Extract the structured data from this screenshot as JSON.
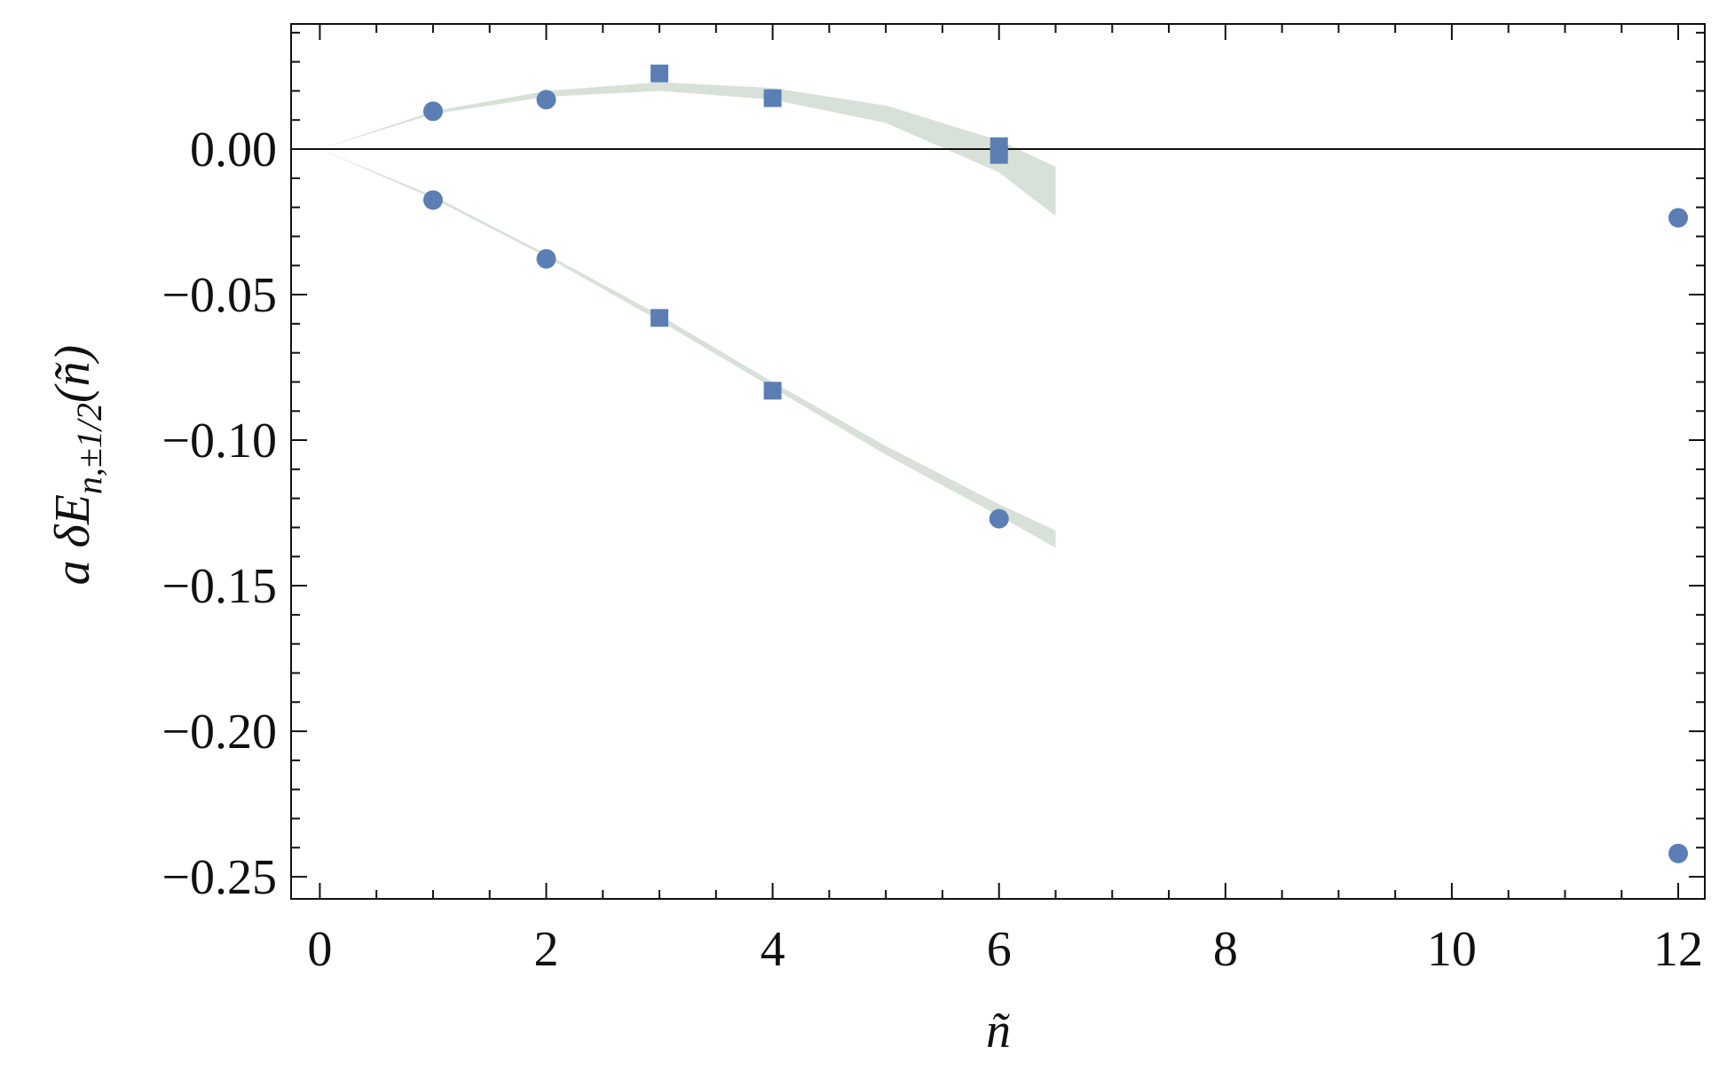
{
  "chart_data": {
    "type": "scatter",
    "x_label": "ñ",
    "y_label": {
      "main": "a δE",
      "sub": "n,±1/2",
      "tail": "(ñ)"
    },
    "xlim": [
      -0.254,
      12.235
    ],
    "ylim": [
      -0.2576,
      0.043
    ],
    "xticks": [
      0,
      2,
      4,
      6,
      8,
      10,
      12
    ],
    "yticks": [
      {
        "value": 0,
        "label": "0.00"
      },
      {
        "value": -0.05,
        "label": "−0.05"
      },
      {
        "value": -0.1,
        "label": "−0.10"
      },
      {
        "value": -0.15,
        "label": "−0.15"
      },
      {
        "value": -0.2,
        "label": "−0.20"
      },
      {
        "value": -0.25,
        "label": "−0.25"
      }
    ],
    "zero_line": true,
    "band_color": "rgba(140,170,140,0.35)",
    "bands": [
      {
        "x": [
          0,
          1,
          2,
          3,
          4,
          5,
          6,
          6.5
        ],
        "lower": [
          0,
          0.012,
          0.018,
          0.02,
          0.017,
          0.009,
          -0.008,
          -0.023
        ],
        "upper": [
          0,
          0.013,
          0.02,
          0.023,
          0.021,
          0.015,
          0.003,
          -0.006
        ]
      },
      {
        "x": [
          0,
          1,
          2,
          3,
          4,
          5,
          6,
          6.5
        ],
        "lower": [
          0,
          -0.017,
          -0.037,
          -0.059,
          -0.082,
          -0.105,
          -0.126,
          -0.137
        ],
        "upper": [
          0,
          -0.016,
          -0.036,
          -0.057,
          -0.08,
          -0.102,
          -0.122,
          -0.131
        ]
      }
    ],
    "series": [
      {
        "color": "#5b7fb5",
        "x": [
          1,
          2,
          3,
          4,
          6,
          6,
          12
        ],
        "values": [
          0.013,
          0.017,
          0.026,
          0.0175,
          0.001,
          -0.002,
          -0.0236
        ],
        "markers": [
          "circle",
          "circle",
          "square",
          "square",
          "square",
          "square",
          "circle"
        ]
      },
      {
        "color": "#5b7fb5",
        "x": [
          1,
          2,
          3,
          4,
          6,
          12
        ],
        "values": [
          -0.0175,
          -0.0377,
          -0.058,
          -0.083,
          -0.127,
          -0.242
        ],
        "markers": [
          "circle",
          "circle",
          "square",
          "square",
          "circle",
          "circle"
        ]
      }
    ]
  }
}
